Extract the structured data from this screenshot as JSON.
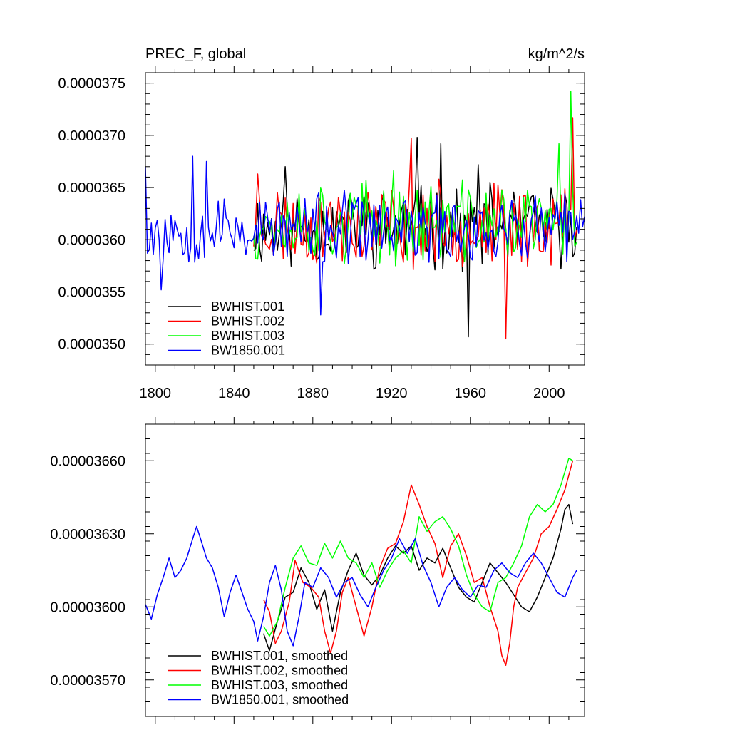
{
  "chart_data": [
    {
      "type": "line",
      "title_left": "PREC_F, global",
      "title_right": "kg/m^2/s",
      "x_ticks": [
        1800,
        1840,
        1880,
        1920,
        1960,
        2000
      ],
      "xlim": [
        1795,
        2018
      ],
      "y_ticks": [
        "0.0000375",
        "0.0000370",
        "0.0000365",
        "0.0000360",
        "0.0000355",
        "0.0000350"
      ],
      "y_tick_values": [
        3.75e-05,
        3.7e-05,
        3.65e-05,
        3.6e-05,
        3.55e-05,
        3.5e-05
      ],
      "ylim": [
        3.48e-05,
        3.76e-05
      ],
      "legend": "bottom-left",
      "series": [
        {
          "name": "BWHIST.001",
          "color": "#000000",
          "x_start": 1850,
          "x_end": 2014,
          "mean": 3.612e-05,
          "amp": 3.2e-07,
          "seed": 11,
          "peaks": [
            [
              1866,
              3.67e-05
            ],
            [
              1933,
              3.698e-05
            ],
            [
              1945,
              3.692e-05
            ],
            [
              1959,
              3.507e-05
            ],
            [
              1964,
              3.672e-05
            ]
          ]
        },
        {
          "name": "BWHIST.002",
          "color": "#ff0000",
          "x_start": 1850,
          "x_end": 2014,
          "mean": 3.614e-05,
          "amp": 3.3e-07,
          "seed": 23,
          "peaks": [
            [
              1852,
              3.663e-05
            ],
            [
              1930,
              3.697e-05
            ],
            [
              1978,
              3.505e-05
            ],
            [
              2012,
              3.717e-05
            ]
          ]
        },
        {
          "name": "BWHIST.003",
          "color": "#00ff00",
          "x_start": 1850,
          "x_end": 2014,
          "mean": 3.616e-05,
          "amp": 3.2e-07,
          "seed": 37,
          "peaks": [
            [
              1921,
              3.666e-05
            ],
            [
              2005,
              3.692e-05
            ],
            [
              2011,
              3.742e-05
            ]
          ]
        },
        {
          "name": "BW1850.001",
          "color": "#0000ff",
          "x_start": 1795,
          "x_end": 2018,
          "mean": 3.61e-05,
          "amp": 2.8e-07,
          "seed": 53,
          "peaks": [
            [
              1795,
              3.67e-05
            ],
            [
              1803,
              3.552e-05
            ],
            [
              1819,
              3.68e-05
            ],
            [
              1826,
              3.675e-05
            ],
            [
              1884,
              3.528e-05
            ]
          ]
        }
      ]
    },
    {
      "type": "line",
      "x_ticks": [
        1800,
        1840,
        1880,
        1920,
        1960,
        2000
      ],
      "xlim": [
        1795,
        2018
      ],
      "y_ticks": [
        "0.00003660",
        "0.00003630",
        "0.00003600",
        "0.00003570"
      ],
      "y_tick_values": [
        3.66e-05,
        3.63e-05,
        3.6e-05,
        3.57e-05
      ],
      "ylim": [
        3.555e-05,
        3.675e-05
      ],
      "legend": "bottom-left",
      "series": [
        {
          "name": "BWHIST.001, smoothed",
          "color": "#000000",
          "points": [
            [
              1855,
              3.589e-05
            ],
            [
              1858,
              3.582e-05
            ],
            [
              1862,
              3.594e-05
            ],
            [
              1866,
              3.604e-05
            ],
            [
              1870,
              3.606e-05
            ],
            [
              1874,
              3.616e-05
            ],
            [
              1878,
              3.61e-05
            ],
            [
              1882,
              3.599e-05
            ],
            [
              1886,
              3.607e-05
            ],
            [
              1890,
              3.59e-05
            ],
            [
              1894,
              3.606e-05
            ],
            [
              1898,
              3.615e-05
            ],
            [
              1902,
              3.622e-05
            ],
            [
              1906,
              3.613e-05
            ],
            [
              1910,
              3.609e-05
            ],
            [
              1914,
              3.613e-05
            ],
            [
              1918,
              3.62e-05
            ],
            [
              1922,
              3.625e-05
            ],
            [
              1926,
              3.622e-05
            ],
            [
              1930,
              3.625e-05
            ],
            [
              1934,
              3.615e-05
            ],
            [
              1938,
              3.62e-05
            ],
            [
              1942,
              3.618e-05
            ],
            [
              1946,
              3.624e-05
            ],
            [
              1950,
              3.616e-05
            ],
            [
              1954,
              3.608e-05
            ],
            [
              1958,
              3.604e-05
            ],
            [
              1962,
              3.602e-05
            ],
            [
              1966,
              3.61e-05
            ],
            [
              1970,
              3.618e-05
            ],
            [
              1974,
              3.614e-05
            ],
            [
              1978,
              3.61e-05
            ],
            [
              1982,
              3.605e-05
            ],
            [
              1986,
              3.6e-05
            ],
            [
              1990,
              3.598e-05
            ],
            [
              1994,
              3.604e-05
            ],
            [
              1998,
              3.612e-05
            ],
            [
              2002,
              3.62e-05
            ],
            [
              2006,
              3.632e-05
            ],
            [
              2008,
              3.64e-05
            ],
            [
              2010,
              3.642e-05
            ],
            [
              2012,
              3.634e-05
            ]
          ]
        },
        {
          "name": "BWHIST.002, smoothed",
          "color": "#ff0000",
          "points": [
            [
              1855,
              3.603e-05
            ],
            [
              1858,
              3.598e-05
            ],
            [
              1861,
              3.585e-05
            ],
            [
              1864,
              3.59e-05
            ],
            [
              1868,
              3.602e-05
            ],
            [
              1871,
              3.619e-05
            ],
            [
              1875,
              3.61e-05
            ],
            [
              1879,
              3.608e-05
            ],
            [
              1883,
              3.604e-05
            ],
            [
              1886,
              3.59e-05
            ],
            [
              1889,
              3.581e-05
            ],
            [
              1892,
              3.59e-05
            ],
            [
              1895,
              3.606e-05
            ],
            [
              1898,
              3.612e-05
            ],
            [
              1902,
              3.6e-05
            ],
            [
              1906,
              3.588e-05
            ],
            [
              1910,
              3.6e-05
            ],
            [
              1914,
              3.616e-05
            ],
            [
              1918,
              3.624e-05
            ],
            [
              1922,
              3.626e-05
            ],
            [
              1926,
              3.635e-05
            ],
            [
              1930,
              3.65e-05
            ],
            [
              1934,
              3.642e-05
            ],
            [
              1938,
              3.633e-05
            ],
            [
              1942,
              3.626e-05
            ],
            [
              1946,
              3.612e-05
            ],
            [
              1950,
              3.625e-05
            ],
            [
              1954,
              3.63e-05
            ],
            [
              1958,
              3.621e-05
            ],
            [
              1962,
              3.61e-05
            ],
            [
              1966,
              3.612e-05
            ],
            [
              1970,
              3.6e-05
            ],
            [
              1974,
              3.59e-05
            ],
            [
              1976,
              3.58e-05
            ],
            [
              1978,
              3.576e-05
            ],
            [
              1980,
              3.585e-05
            ],
            [
              1982,
              3.6e-05
            ],
            [
              1984,
              3.608e-05
            ],
            [
              1988,
              3.614e-05
            ],
            [
              1992,
              3.62e-05
            ],
            [
              1996,
              3.63e-05
            ],
            [
              2000,
              3.633e-05
            ],
            [
              2004,
              3.64e-05
            ],
            [
              2008,
              3.648e-05
            ],
            [
              2012,
              3.66e-05
            ]
          ]
        },
        {
          "name": "BWHIST.003, smoothed",
          "color": "#00ff00",
          "points": [
            [
              1855,
              3.592e-05
            ],
            [
              1858,
              3.588e-05
            ],
            [
              1862,
              3.594e-05
            ],
            [
              1866,
              3.608e-05
            ],
            [
              1870,
              3.62e-05
            ],
            [
              1874,
              3.625e-05
            ],
            [
              1878,
              3.618e-05
            ],
            [
              1882,
              3.617e-05
            ],
            [
              1886,
              3.626e-05
            ],
            [
              1890,
              3.62e-05
            ],
            [
              1894,
              3.627e-05
            ],
            [
              1898,
              3.62e-05
            ],
            [
              1902,
              3.618e-05
            ],
            [
              1906,
              3.612e-05
            ],
            [
              1910,
              3.618e-05
            ],
            [
              1914,
              3.608e-05
            ],
            [
              1918,
              3.615e-05
            ],
            [
              1922,
              3.62e-05
            ],
            [
              1926,
              3.623e-05
            ],
            [
              1930,
              3.618e-05
            ],
            [
              1934,
              3.637e-05
            ],
            [
              1938,
              3.631e-05
            ],
            [
              1942,
              3.635e-05
            ],
            [
              1946,
              3.637e-05
            ],
            [
              1950,
              3.632e-05
            ],
            [
              1954,
              3.625e-05
            ],
            [
              1958,
              3.613e-05
            ],
            [
              1962,
              3.605e-05
            ],
            [
              1966,
              3.6e-05
            ],
            [
              1970,
              3.598e-05
            ],
            [
              1974,
              3.61e-05
            ],
            [
              1978,
              3.612e-05
            ],
            [
              1982,
              3.618e-05
            ],
            [
              1986,
              3.625e-05
            ],
            [
              1990,
              3.637e-05
            ],
            [
              1994,
              3.642e-05
            ],
            [
              1998,
              3.639e-05
            ],
            [
              2002,
              3.642e-05
            ],
            [
              2006,
              3.65e-05
            ],
            [
              2010,
              3.661e-05
            ],
            [
              2012,
              3.66e-05
            ]
          ]
        },
        {
          "name": "BW1850.001, smoothed",
          "color": "#0000ff",
          "points": [
            [
              1795,
              3.601e-05
            ],
            [
              1798,
              3.595e-05
            ],
            [
              1801,
              3.605e-05
            ],
            [
              1804,
              3.612e-05
            ],
            [
              1807,
              3.62e-05
            ],
            [
              1810,
              3.612e-05
            ],
            [
              1813,
              3.615e-05
            ],
            [
              1816,
              3.62e-05
            ],
            [
              1819,
              3.628e-05
            ],
            [
              1821,
              3.633e-05
            ],
            [
              1823,
              3.628e-05
            ],
            [
              1826,
              3.62e-05
            ],
            [
              1829,
              3.616e-05
            ],
            [
              1832,
              3.608e-05
            ],
            [
              1835,
              3.596e-05
            ],
            [
              1838,
              3.606e-05
            ],
            [
              1841,
              3.613e-05
            ],
            [
              1844,
              3.606e-05
            ],
            [
              1847,
              3.599e-05
            ],
            [
              1850,
              3.594e-05
            ],
            [
              1852,
              3.586e-05
            ],
            [
              1855,
              3.596e-05
            ],
            [
              1858,
              3.61e-05
            ],
            [
              1861,
              3.617e-05
            ],
            [
              1864,
              3.607e-05
            ],
            [
              1867,
              3.59e-05
            ],
            [
              1870,
              3.584e-05
            ],
            [
              1873,
              3.596e-05
            ],
            [
              1876,
              3.61e-05
            ],
            [
              1880,
              3.608e-05
            ],
            [
              1884,
              3.616e-05
            ],
            [
              1888,
              3.612e-05
            ],
            [
              1892,
              3.604e-05
            ],
            [
              1896,
              3.61e-05
            ],
            [
              1900,
              3.612e-05
            ],
            [
              1904,
              3.605e-05
            ],
            [
              1908,
              3.6e-05
            ],
            [
              1912,
              3.608e-05
            ],
            [
              1916,
              3.615e-05
            ],
            [
              1920,
              3.62e-05
            ],
            [
              1924,
              3.628e-05
            ],
            [
              1928,
              3.622e-05
            ],
            [
              1932,
              3.628e-05
            ],
            [
              1936,
              3.617e-05
            ],
            [
              1940,
              3.61e-05
            ],
            [
              1944,
              3.6e-05
            ],
            [
              1948,
              3.608e-05
            ],
            [
              1952,
              3.612e-05
            ],
            [
              1956,
              3.607e-05
            ],
            [
              1960,
              3.604e-05
            ],
            [
              1964,
              3.609e-05
            ],
            [
              1968,
              3.608e-05
            ],
            [
              1972,
              3.615e-05
            ],
            [
              1976,
              3.618e-05
            ],
            [
              1980,
              3.614e-05
            ],
            [
              1984,
              3.612e-05
            ],
            [
              1988,
              3.618e-05
            ],
            [
              1992,
              3.622e-05
            ],
            [
              1996,
              3.618e-05
            ],
            [
              2000,
              3.612e-05
            ],
            [
              2004,
              3.606e-05
            ],
            [
              2008,
              3.604e-05
            ],
            [
              2012,
              3.612e-05
            ],
            [
              2014,
              3.615e-05
            ]
          ]
        }
      ]
    }
  ]
}
